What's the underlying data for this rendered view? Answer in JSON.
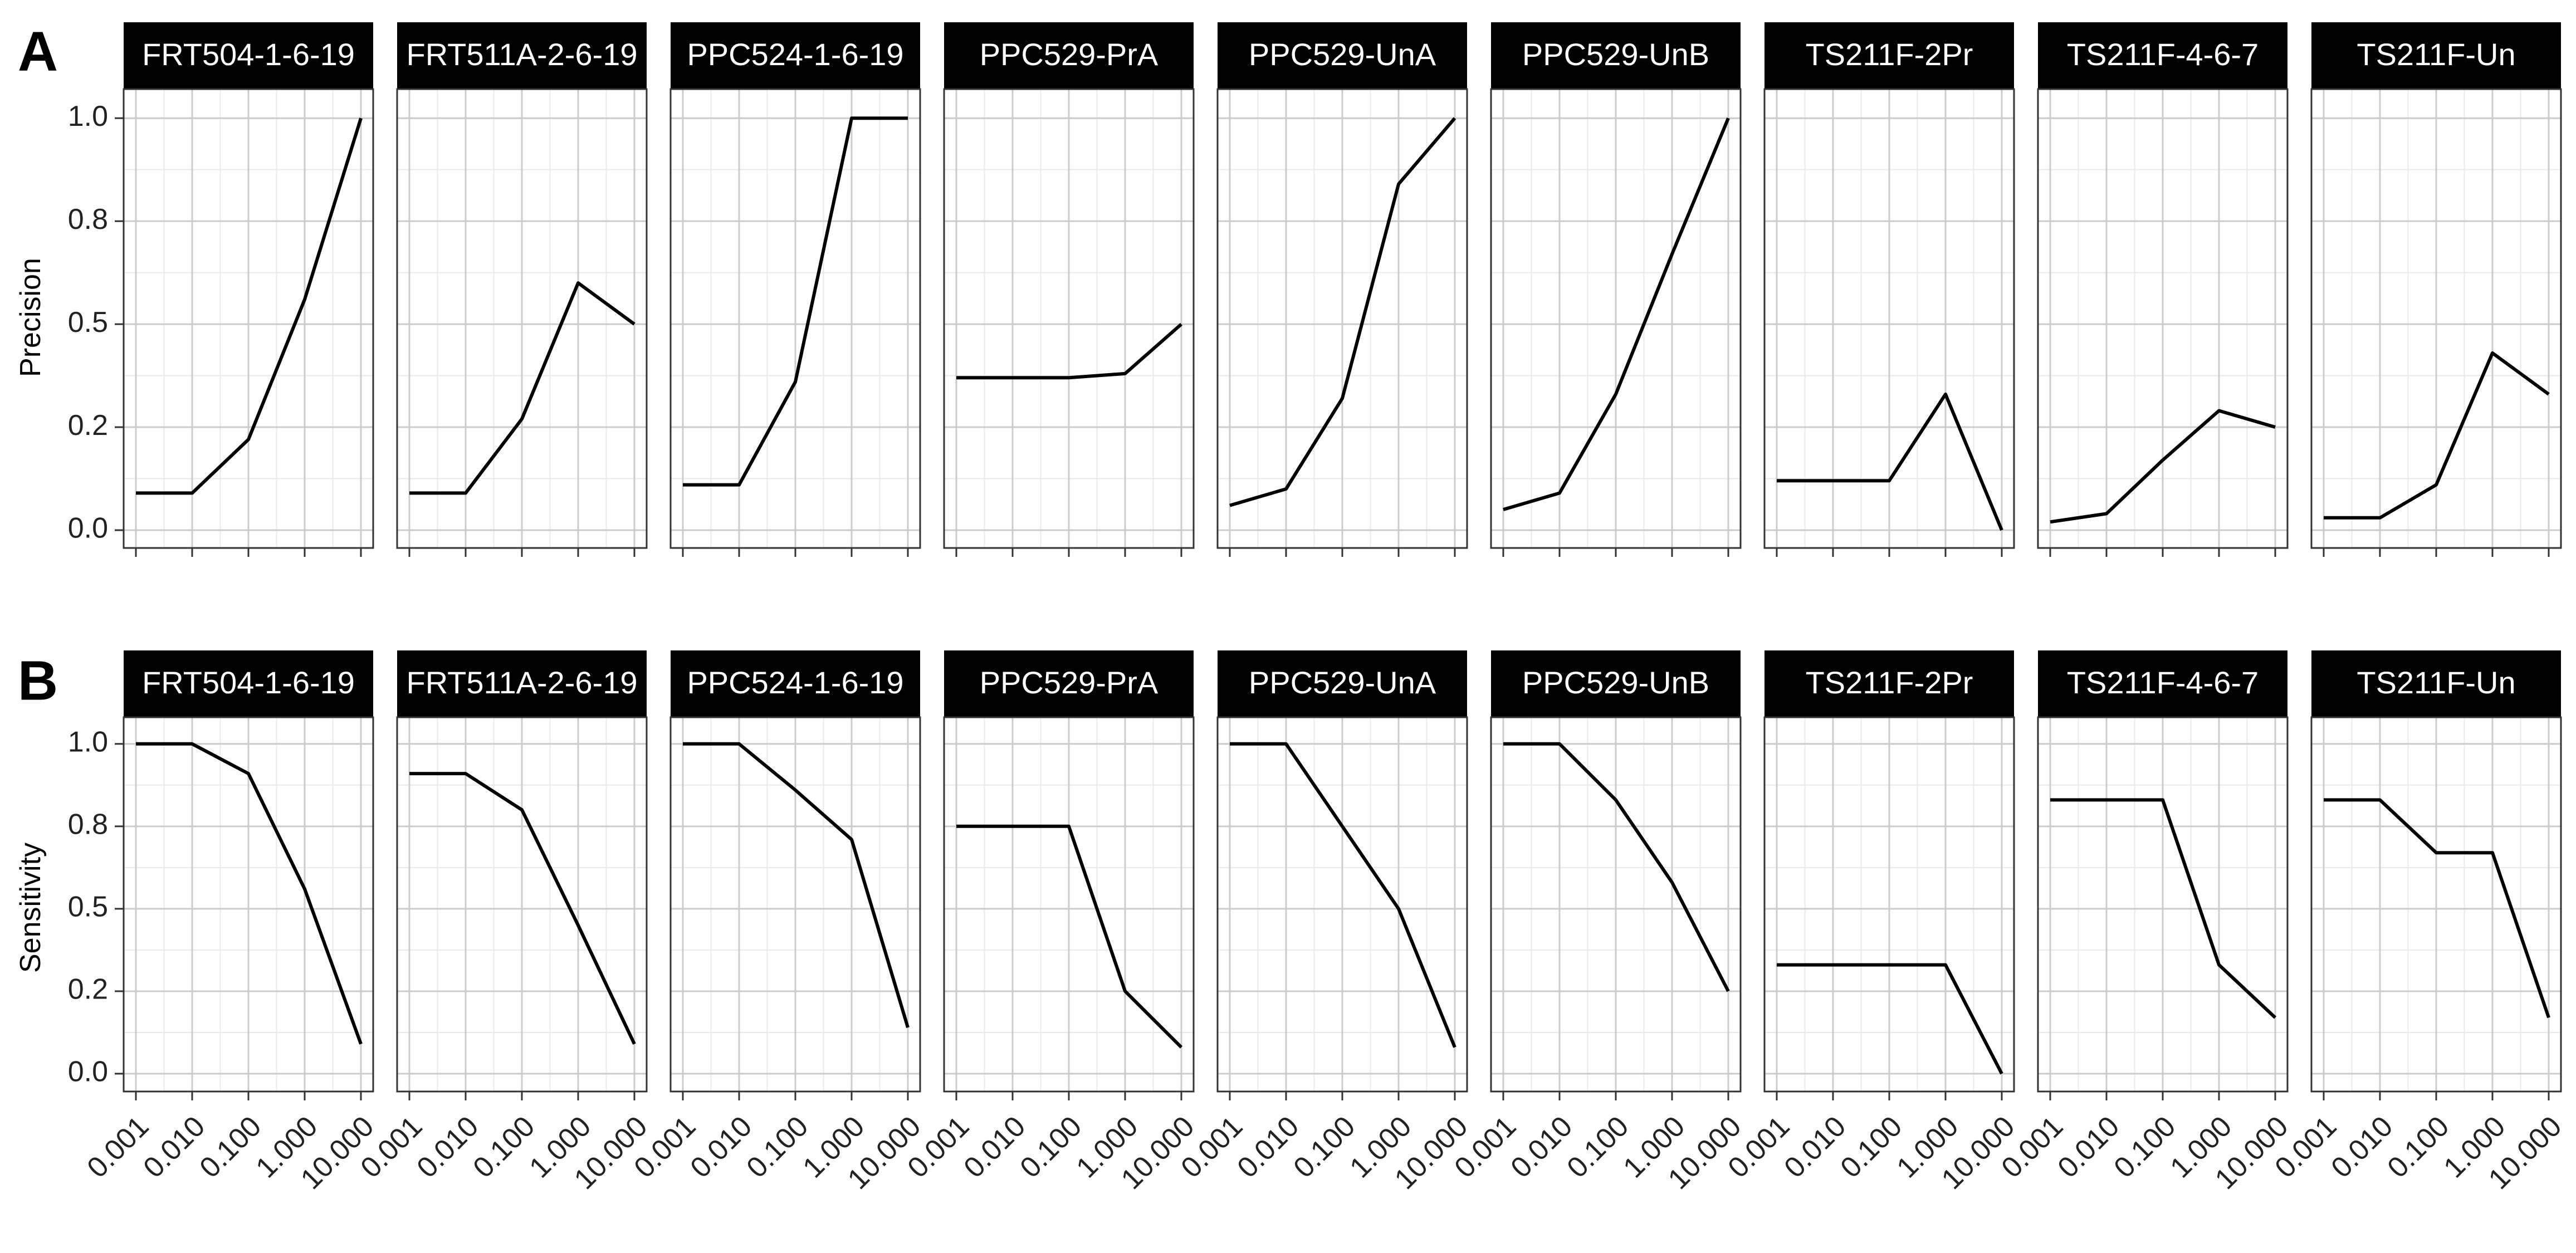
{
  "chart_data": [
    {
      "type": "line",
      "tag": "A",
      "ylabel": "Precision",
      "ylim": [
        0,
        1.03
      ],
      "x": [
        0.001,
        0.01,
        0.1,
        1.0,
        10.0
      ],
      "x_scale": "log",
      "xticks": [
        "0.001",
        "0.010",
        "0.100",
        "1.000",
        "10.000"
      ],
      "yticks": [
        0.0,
        0.25,
        0.5,
        0.75,
        1.0
      ],
      "ytick_labels": [
        "0.0",
        "0.2",
        "0.5",
        "0.8",
        "1.0"
      ],
      "show_xtick_labels": false,
      "grid": true,
      "series": [
        {
          "name": "FRT504-1-6-19",
          "values": [
            0.09,
            0.09,
            0.22,
            0.56,
            1.0
          ]
        },
        {
          "name": "FRT511A-2-6-19",
          "values": [
            0.09,
            0.09,
            0.27,
            0.6,
            0.5
          ]
        },
        {
          "name": "PPC524-1-6-19",
          "values": [
            0.11,
            0.11,
            0.36,
            1.0,
            1.0
          ]
        },
        {
          "name": "PPC529-PrA",
          "values": [
            0.37,
            0.37,
            0.37,
            0.38,
            0.5
          ]
        },
        {
          "name": "PPC529-UnA",
          "values": [
            0.06,
            0.1,
            0.32,
            0.84,
            1.0
          ]
        },
        {
          "name": "PPC529-UnB",
          "values": [
            0.05,
            0.09,
            0.33,
            0.67,
            1.0
          ]
        },
        {
          "name": "TS211F-2Pr",
          "values": [
            0.12,
            0.12,
            0.12,
            0.33,
            0.0
          ]
        },
        {
          "name": "TS211F-4-6-7",
          "values": [
            0.02,
            0.04,
            0.17,
            0.29,
            0.25
          ]
        },
        {
          "name": "TS211F-Un",
          "values": [
            0.03,
            0.03,
            0.11,
            0.43,
            0.33
          ]
        }
      ]
    },
    {
      "type": "line",
      "tag": "B",
      "ylabel": "Sensitivity",
      "ylim": [
        0,
        1.03
      ],
      "x": [
        0.001,
        0.01,
        0.1,
        1.0,
        10.0
      ],
      "x_scale": "log",
      "xticks": [
        "0.001",
        "0.010",
        "0.100",
        "1.000",
        "10.000"
      ],
      "yticks": [
        0.0,
        0.25,
        0.5,
        0.75,
        1.0
      ],
      "ytick_labels": [
        "0.0",
        "0.2",
        "0.5",
        "0.8",
        "1.0"
      ],
      "show_xtick_labels": true,
      "grid": true,
      "series": [
        {
          "name": "FRT504-1-6-19",
          "values": [
            1.0,
            1.0,
            0.91,
            0.56,
            0.09
          ]
        },
        {
          "name": "FRT511A-2-6-19",
          "values": [
            0.91,
            0.91,
            0.8,
            0.45,
            0.09
          ]
        },
        {
          "name": "PPC524-1-6-19",
          "values": [
            1.0,
            1.0,
            0.86,
            0.71,
            0.14
          ]
        },
        {
          "name": "PPC529-PrA",
          "values": [
            0.75,
            0.75,
            0.75,
            0.25,
            0.08
          ]
        },
        {
          "name": "PPC529-UnA",
          "values": [
            1.0,
            1.0,
            0.75,
            0.5,
            0.08
          ]
        },
        {
          "name": "PPC529-UnB",
          "values": [
            1.0,
            1.0,
            0.83,
            0.58,
            0.25
          ]
        },
        {
          "name": "TS211F-2Pr",
          "values": [
            0.33,
            0.33,
            0.33,
            0.33,
            0.0
          ]
        },
        {
          "name": "TS211F-4-6-7",
          "values": [
            0.83,
            0.83,
            0.83,
            0.33,
            0.17
          ]
        },
        {
          "name": "TS211F-Un",
          "values": [
            0.83,
            0.83,
            0.67,
            0.67,
            0.17
          ]
        }
      ]
    }
  ],
  "colors": {
    "line": "#000000",
    "strip_background": "#000000",
    "strip_text": "#ffffff",
    "grid_major": "#cccccc",
    "grid_minor": "#e9e9e9",
    "panel_border": "#333333",
    "background": "#ffffff"
  }
}
